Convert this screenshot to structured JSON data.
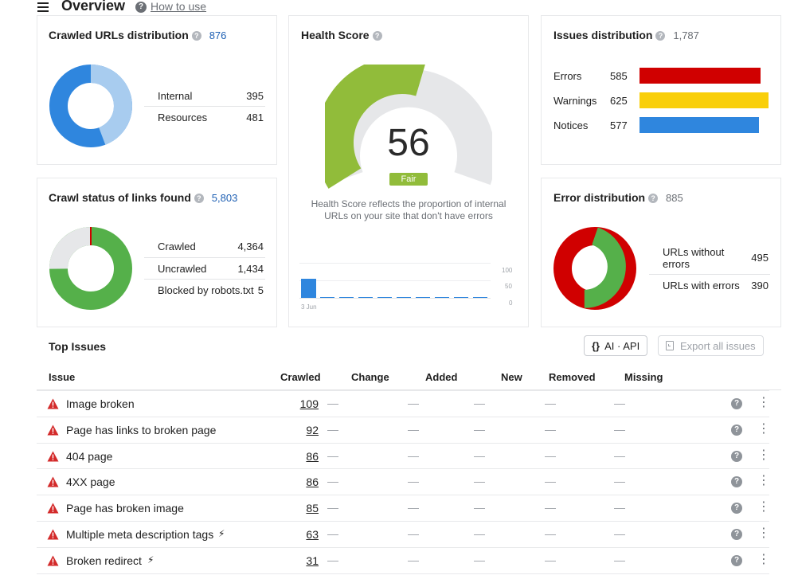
{
  "header": {
    "title": "Overview",
    "how_to_use": "How to use"
  },
  "crawled_urls": {
    "title": "Crawled URLs distribution",
    "total": "876",
    "rows": [
      {
        "label": "Internal",
        "value": "395"
      },
      {
        "label": "Resources",
        "value": "481"
      }
    ]
  },
  "health": {
    "title": "Health Score",
    "score": "56",
    "rating": "Fair",
    "description": "Health Score reflects the proportion of internal URLs on your site that don't have errors",
    "axis": [
      "100",
      "50",
      "0"
    ],
    "date_label": "3 Jun"
  },
  "issues_dist": {
    "title": "Issues distribution",
    "total": "1,787",
    "rows": [
      {
        "label": "Errors",
        "value": "585",
        "color": "#d00000"
      },
      {
        "label": "Warnings",
        "value": "625",
        "color": "#f9cf0a"
      },
      {
        "label": "Notices",
        "value": "577",
        "color": "#2f86de"
      }
    ]
  },
  "crawl_status": {
    "title": "Crawl status of links found",
    "total": "5,803",
    "rows": [
      {
        "label": "Crawled",
        "value": "4,364"
      },
      {
        "label": "Uncrawled",
        "value": "1,434"
      },
      {
        "label": "Blocked by robots.txt",
        "value": "5"
      }
    ]
  },
  "error_dist": {
    "title": "Error distribution",
    "total": "885",
    "rows": [
      {
        "label": "URLs without errors",
        "value": "495"
      },
      {
        "label": "URLs with errors",
        "value": "390"
      }
    ]
  },
  "top_issues": {
    "title": "Top Issues",
    "ai_api": "AI · API",
    "export": "Export all issues",
    "columns": [
      "Issue",
      "Crawled",
      "Change",
      "Added",
      "New",
      "Removed",
      "Missing"
    ],
    "dash": "—",
    "rows": [
      {
        "name": "Image broken",
        "crawled": "109"
      },
      {
        "name": "Page has links to broken page",
        "crawled": "92"
      },
      {
        "name": "404 page",
        "crawled": "86"
      },
      {
        "name": "4XX page",
        "crawled": "86"
      },
      {
        "name": "Page has broken image",
        "crawled": "85"
      },
      {
        "name": "Multiple meta description tags",
        "crawled": "63"
      },
      {
        "name": "Broken redirect",
        "crawled": "31"
      }
    ]
  }
}
